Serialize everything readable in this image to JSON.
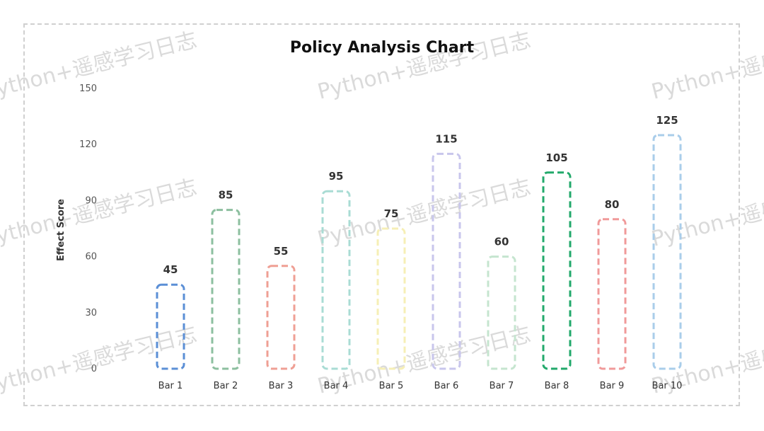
{
  "chart_data": {
    "type": "bar",
    "title": "Policy Analysis Chart",
    "xlabel": "",
    "ylabel": "Effect Score",
    "ylim": [
      0,
      150
    ],
    "yticks": [
      0,
      30,
      60,
      90,
      120,
      150
    ],
    "grid": false,
    "categories": [
      "Bar 1",
      "Bar 2",
      "Bar 3",
      "Bar 4",
      "Bar 5",
      "Bar 6",
      "Bar 7",
      "Bar 8",
      "Bar 9",
      "Bar 10"
    ],
    "values": [
      45,
      85,
      55,
      95,
      75,
      115,
      60,
      105,
      80,
      125
    ],
    "colors": [
      "#5b8fd6",
      "#8cbf9f",
      "#ef9f94",
      "#a9dcd4",
      "#f6efb6",
      "#c8c6ec",
      "#c5e5cf",
      "#22a96b",
      "#f09a9a",
      "#a9cdea"
    ]
  },
  "watermark": "Python+遥感学习日志"
}
